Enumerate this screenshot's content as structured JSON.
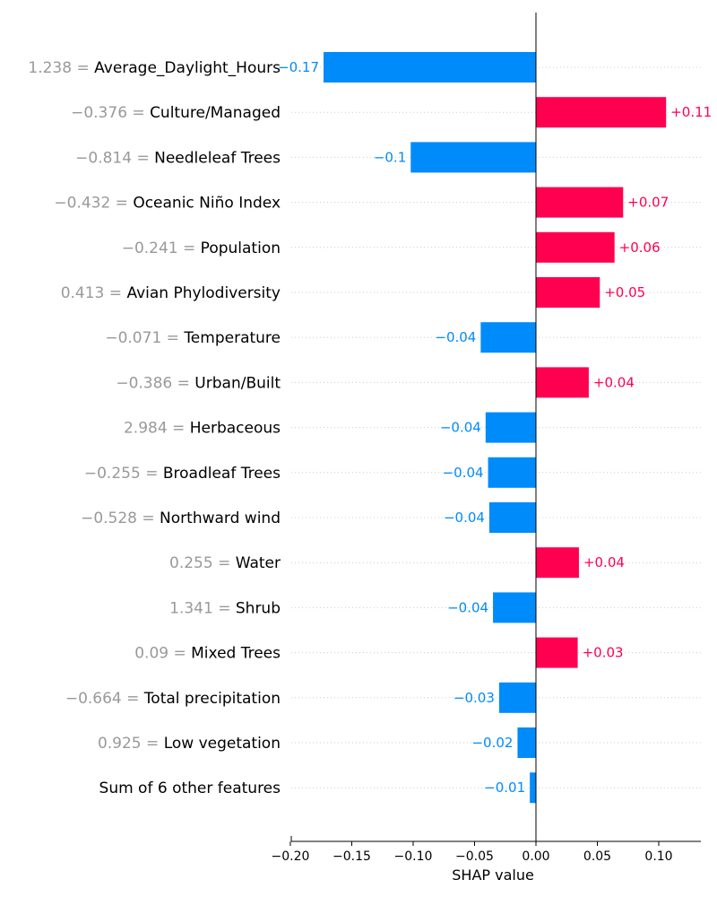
{
  "chart_data": {
    "type": "bar",
    "orientation": "horizontal",
    "xlabel": "SHAP value",
    "xlim": [
      -0.2,
      0.135
    ],
    "x_ticks": [
      {
        "value": -0.2,
        "label": "−0.20"
      },
      {
        "value": -0.15,
        "label": "−0.15"
      },
      {
        "value": -0.1,
        "label": "−0.10"
      },
      {
        "value": -0.05,
        "label": "−0.05"
      },
      {
        "value": 0.0,
        "label": "0.00"
      },
      {
        "value": 0.05,
        "label": "0.05"
      },
      {
        "value": 0.1,
        "label": "0.10"
      }
    ],
    "grid": "dotted horizontal row lines",
    "positive_color": "#ff0051",
    "negative_color": "#008bfb",
    "feature_value_color": "#999999",
    "features": [
      {
        "value_text": "1.238",
        "name": "Average_Daylight_Hours",
        "shap": -0.173,
        "label": "−0.17"
      },
      {
        "value_text": "−0.376",
        "name": "Culture/Managed",
        "shap": 0.106,
        "label": "+0.11"
      },
      {
        "value_text": "−0.814",
        "name": "Needleleaf Trees",
        "shap": -0.102,
        "label": "−0.1"
      },
      {
        "value_text": "−0.432",
        "name": "Oceanic Niño Index",
        "shap": 0.071,
        "label": "+0.07"
      },
      {
        "value_text": "−0.241",
        "name": "Population",
        "shap": 0.064,
        "label": "+0.06"
      },
      {
        "value_text": "0.413",
        "name": "Avian Phylodiversity",
        "shap": 0.052,
        "label": "+0.05"
      },
      {
        "value_text": "−0.071",
        "name": "Temperature",
        "shap": -0.045,
        "label": "−0.04"
      },
      {
        "value_text": "−0.386",
        "name": "Urban/Built",
        "shap": 0.043,
        "label": "+0.04"
      },
      {
        "value_text": "2.984",
        "name": "Herbaceous",
        "shap": -0.041,
        "label": "−0.04"
      },
      {
        "value_text": "−0.255",
        "name": "Broadleaf Trees",
        "shap": -0.039,
        "label": "−0.04"
      },
      {
        "value_text": "−0.528",
        "name": "Northward wind",
        "shap": -0.038,
        "label": "−0.04"
      },
      {
        "value_text": "0.255",
        "name": "Water",
        "shap": 0.035,
        "label": "+0.04"
      },
      {
        "value_text": "1.341",
        "name": "Shrub",
        "shap": -0.035,
        "label": "−0.04"
      },
      {
        "value_text": "0.09",
        "name": "Mixed Trees",
        "shap": 0.034,
        "label": "+0.03"
      },
      {
        "value_text": "−0.664",
        "name": "Total precipitation",
        "shap": -0.03,
        "label": "−0.03"
      },
      {
        "value_text": "0.925",
        "name": "Low vegetation",
        "shap": -0.015,
        "label": "−0.02"
      },
      {
        "value_text": "",
        "name": "Sum of 6 other features",
        "shap": -0.005,
        "label": "−0.01"
      }
    ]
  }
}
